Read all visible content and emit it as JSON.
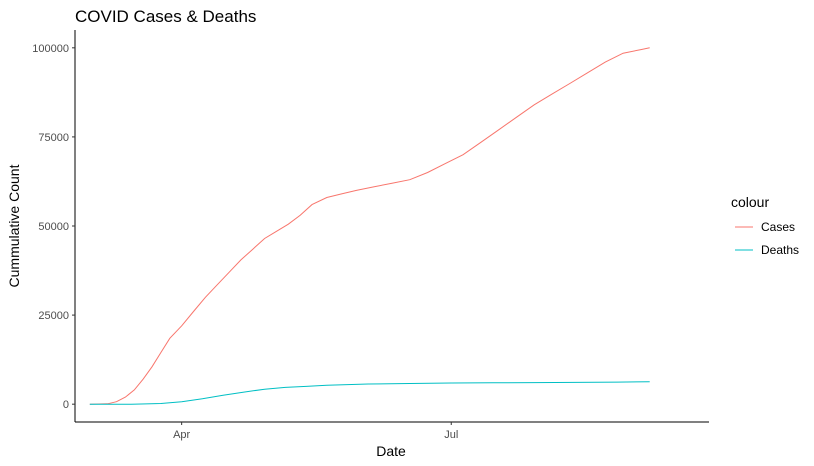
{
  "chart_data": {
    "type": "line",
    "title": "COVID Cases & Deaths",
    "xlabel": "Date",
    "ylabel": "Cummulative Count",
    "x_ticks": [
      {
        "date": "2020-04-01",
        "label": "Apr"
      },
      {
        "date": "2020-07-01",
        "label": "Jul"
      }
    ],
    "y_ticks": [
      0,
      25000,
      50000,
      75000,
      100000
    ],
    "xlim": [
      "2020-02-25",
      "2020-09-26"
    ],
    "ylim": [
      -5000,
      105000
    ],
    "grid": false,
    "legend": {
      "title": "colour",
      "position": "right"
    },
    "series": [
      {
        "name": "Cases",
        "color": "#F8766D",
        "points": [
          [
            "2020-03-01",
            0
          ],
          [
            "2020-03-07",
            100
          ],
          [
            "2020-03-10",
            700
          ],
          [
            "2020-03-13",
            2000
          ],
          [
            "2020-03-16",
            4000
          ],
          [
            "2020-03-19",
            7000
          ],
          [
            "2020-03-22",
            10500
          ],
          [
            "2020-03-25",
            14500
          ],
          [
            "2020-03-28",
            18500
          ],
          [
            "2020-04-01",
            22000
          ],
          [
            "2020-04-05",
            26000
          ],
          [
            "2020-04-09",
            30000
          ],
          [
            "2020-04-13",
            33500
          ],
          [
            "2020-04-17",
            37000
          ],
          [
            "2020-04-21",
            40500
          ],
          [
            "2020-04-25",
            43500
          ],
          [
            "2020-04-29",
            46500
          ],
          [
            "2020-05-03",
            48500
          ],
          [
            "2020-05-07",
            50500
          ],
          [
            "2020-05-11",
            53000
          ],
          [
            "2020-05-15",
            56000
          ],
          [
            "2020-05-20",
            58000
          ],
          [
            "2020-05-25",
            59000
          ],
          [
            "2020-05-30",
            60000
          ],
          [
            "2020-06-05",
            61000
          ],
          [
            "2020-06-11",
            62000
          ],
          [
            "2020-06-17",
            63000
          ],
          [
            "2020-06-23",
            65000
          ],
          [
            "2020-06-29",
            67500
          ],
          [
            "2020-07-05",
            70000
          ],
          [
            "2020-07-11",
            73500
          ],
          [
            "2020-07-17",
            77000
          ],
          [
            "2020-07-23",
            80500
          ],
          [
            "2020-07-29",
            84000
          ],
          [
            "2020-08-04",
            87000
          ],
          [
            "2020-08-10",
            90000
          ],
          [
            "2020-08-16",
            93000
          ],
          [
            "2020-08-22",
            96000
          ],
          [
            "2020-08-28",
            98500
          ],
          [
            "2020-09-03",
            99500
          ],
          [
            "2020-09-06",
            100000
          ]
        ]
      },
      {
        "name": "Deaths",
        "color": "#00BFC4",
        "points": [
          [
            "2020-03-01",
            0
          ],
          [
            "2020-03-15",
            0
          ],
          [
            "2020-03-25",
            200
          ],
          [
            "2020-04-01",
            700
          ],
          [
            "2020-04-08",
            1500
          ],
          [
            "2020-04-15",
            2500
          ],
          [
            "2020-04-22",
            3400
          ],
          [
            "2020-04-29",
            4200
          ],
          [
            "2020-05-06",
            4700
          ],
          [
            "2020-05-13",
            5000
          ],
          [
            "2020-05-20",
            5300
          ],
          [
            "2020-05-27",
            5500
          ],
          [
            "2020-06-03",
            5650
          ],
          [
            "2020-06-17",
            5800
          ],
          [
            "2020-07-01",
            5950
          ],
          [
            "2020-07-15",
            6000
          ],
          [
            "2020-07-29",
            6050
          ],
          [
            "2020-08-12",
            6100
          ],
          [
            "2020-08-26",
            6200
          ],
          [
            "2020-09-06",
            6300
          ]
        ]
      }
    ]
  }
}
